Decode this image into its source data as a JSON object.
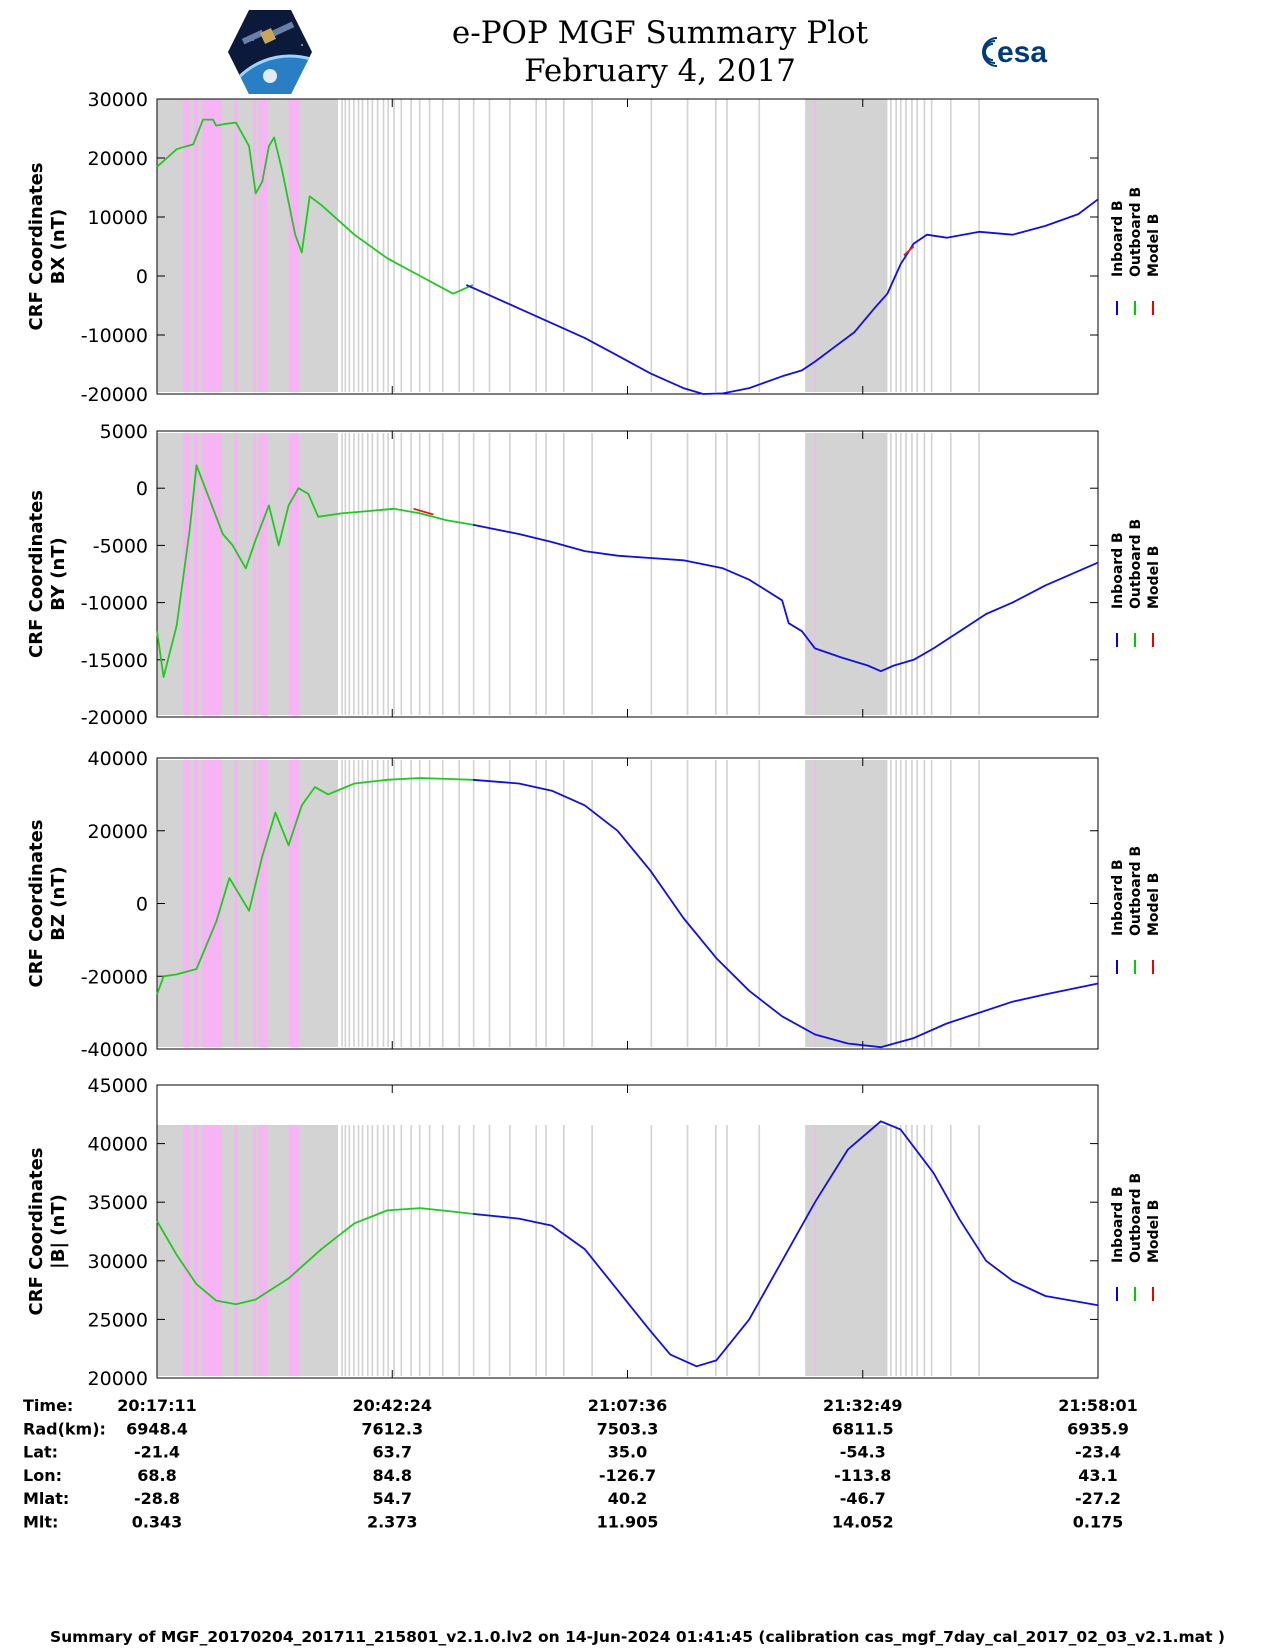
{
  "header": {
    "title": "e-POP MGF Summary Plot",
    "date": "February 4, 2017",
    "esa_logo_text": "esa"
  },
  "legend": {
    "labels": [
      "Inboard B",
      "Outboard B",
      "Model B"
    ],
    "colors": [
      "#0000ee",
      "#00cc00",
      "#ee0000"
    ]
  },
  "colors": {
    "inboard": "#1010e0",
    "outboard": "#22c822",
    "model": "#e02020",
    "gap_gray": "#d3d3d3",
    "gap_pink": "#f7b4f4"
  },
  "chart_data": [
    {
      "type": "line",
      "ylabel": [
        "CRF Coordinates",
        "BX (nT)"
      ],
      "ylim": [
        -20000,
        30000
      ],
      "yticks": [
        -20000,
        -10000,
        0,
        10000,
        20000,
        30000
      ],
      "y_tick_labels": [
        "-20000",
        "-10000",
        "0",
        "10000",
        "20000",
        "30000"
      ],
      "series": [
        {
          "name": "Outboard B",
          "color": "outboard",
          "points": [
            [
              0,
              18500
            ],
            [
              1.5,
              20000
            ],
            [
              3,
              21500
            ],
            [
              4.5,
              22000
            ],
            [
              5.5,
              22300
            ],
            [
              7,
              26500
            ],
            [
              8.5,
              26500
            ],
            [
              9,
              25500
            ],
            [
              10.5,
              25800
            ],
            [
              12,
              26000
            ],
            [
              14,
              22000
            ],
            [
              15,
              14000
            ],
            [
              16,
              16000
            ],
            [
              17,
              22000
            ],
            [
              17.8,
              23500
            ],
            [
              19,
              18000
            ],
            [
              21,
              7000
            ],
            [
              22,
              4000
            ],
            [
              23.2,
              13500
            ],
            [
              25,
              12000
            ],
            [
              30,
              7000
            ],
            [
              35,
              3000
            ],
            [
              40,
              0
            ],
            [
              45,
              -3000
            ],
            [
              48,
              -1500
            ]
          ]
        },
        {
          "name": "Inboard B",
          "color": "inboard",
          "points": [
            [
              47,
              -1500
            ],
            [
              50,
              -3000
            ],
            [
              55,
              -5500
            ],
            [
              60,
              -8000
            ],
            [
              65,
              -10500
            ],
            [
              70,
              -13500
            ],
            [
              75,
              -16500
            ],
            [
              80,
              -19000
            ],
            [
              83,
              -20000
            ],
            [
              86,
              -19900
            ],
            [
              90,
              -19000
            ],
            [
              95,
              -17000
            ],
            [
              98,
              -16000
            ],
            [
              100,
              -14500
            ],
            [
              103,
              -12000
            ],
            [
              106,
              -9500
            ],
            [
              109,
              -5500
            ],
            [
              111,
              -3000
            ],
            [
              113,
              2000
            ],
            [
              115,
              5500
            ],
            [
              117,
              7000
            ],
            [
              120,
              6500
            ],
            [
              125,
              7500
            ],
            [
              130,
              7000
            ],
            [
              135,
              8500
            ],
            [
              140,
              10500
            ],
            [
              143,
              13000
            ]
          ]
        },
        {
          "name": "Model B",
          "color": "model",
          "points": [
            [
              113.5,
              3500
            ],
            [
              115,
              5000
            ]
          ]
        }
      ]
    },
    {
      "type": "line",
      "ylabel": [
        "CRF Coordinates",
        "BY (nT)"
      ],
      "ylim": [
        -20000,
        5000
      ],
      "yticks": [
        -20000,
        -15000,
        -10000,
        -5000,
        0,
        5000
      ],
      "y_tick_labels": [
        "-20000",
        "-15000",
        "-10000",
        "-5000",
        "0",
        "5000"
      ],
      "series": [
        {
          "name": "Outboard B",
          "color": "outboard",
          "points": [
            [
              0,
              -12500
            ],
            [
              1,
              -16500
            ],
            [
              3,
              -12000
            ],
            [
              5,
              -3500
            ],
            [
              6,
              2000
            ],
            [
              8,
              -1000
            ],
            [
              10,
              -4000
            ],
            [
              11.5,
              -5000
            ],
            [
              13.5,
              -7000
            ],
            [
              15,
              -4500
            ],
            [
              17,
              -1500
            ],
            [
              18.5,
              -5000
            ],
            [
              20,
              -1500
            ],
            [
              21.5,
              0
            ],
            [
              23,
              -500
            ],
            [
              24.5,
              -2500
            ],
            [
              28,
              -2200
            ],
            [
              32,
              -2000
            ],
            [
              36,
              -1800
            ],
            [
              40,
              -2200
            ],
            [
              44,
              -2800
            ],
            [
              48,
              -3200
            ]
          ]
        },
        {
          "name": "Inboard B",
          "color": "inboard",
          "points": [
            [
              48,
              -3200
            ],
            [
              55,
              -4000
            ],
            [
              60,
              -4700
            ],
            [
              65,
              -5500
            ],
            [
              70,
              -5900
            ],
            [
              75,
              -6100
            ],
            [
              80,
              -6300
            ],
            [
              86,
              -7000
            ],
            [
              90,
              -8000
            ],
            [
              95,
              -9800
            ],
            [
              96,
              -11800
            ],
            [
              98,
              -12500
            ],
            [
              100,
              -14000
            ],
            [
              104,
              -14800
            ],
            [
              108,
              -15500
            ],
            [
              110,
              -16000
            ],
            [
              112,
              -15500
            ],
            [
              115,
              -15000
            ],
            [
              118,
              -14000
            ],
            [
              122,
              -12500
            ],
            [
              126,
              -11000
            ],
            [
              130,
              -10000
            ],
            [
              135,
              -8500
            ],
            [
              143,
              -6500
            ]
          ]
        },
        {
          "name": "Model B",
          "color": "model",
          "points": [
            [
              39,
              -1800
            ],
            [
              42,
              -2300
            ]
          ]
        }
      ]
    },
    {
      "type": "line",
      "ylabel": [
        "CRF Coordinates",
        "BZ (nT)"
      ],
      "ylim": [
        -40000,
        40000
      ],
      "yticks": [
        -40000,
        -20000,
        0,
        20000,
        40000
      ],
      "y_tick_labels": [
        "-40000",
        "-20000",
        "0",
        "20000",
        "40000"
      ],
      "series": [
        {
          "name": "Outboard B",
          "color": "outboard",
          "points": [
            [
              0,
              -25000
            ],
            [
              1,
              -20000
            ],
            [
              3,
              -19500
            ],
            [
              6,
              -18000
            ],
            [
              9,
              -5000
            ],
            [
              11,
              7000
            ],
            [
              14,
              -2000
            ],
            [
              16,
              13000
            ],
            [
              18,
              25000
            ],
            [
              20,
              16000
            ],
            [
              22,
              27000
            ],
            [
              24,
              32000
            ],
            [
              26,
              30000
            ],
            [
              30,
              33000
            ],
            [
              35,
              34000
            ],
            [
              40,
              34500
            ],
            [
              45,
              34200
            ],
            [
              48,
              34000
            ]
          ]
        },
        {
          "name": "Inboard B",
          "color": "inboard",
          "points": [
            [
              48,
              34000
            ],
            [
              55,
              33000
            ],
            [
              60,
              31000
            ],
            [
              65,
              27000
            ],
            [
              70,
              20000
            ],
            [
              75,
              9000
            ],
            [
              80,
              -4000
            ],
            [
              85,
              -15000
            ],
            [
              90,
              -24000
            ],
            [
              95,
              -31000
            ],
            [
              100,
              -36000
            ],
            [
              105,
              -38500
            ],
            [
              110,
              -39500
            ],
            [
              115,
              -37000
            ],
            [
              120,
              -33000
            ],
            [
              125,
              -30000
            ],
            [
              130,
              -27000
            ],
            [
              135,
              -25000
            ],
            [
              143,
              -22000
            ]
          ]
        }
      ]
    },
    {
      "type": "line",
      "ylabel": [
        "CRF Coordinates",
        "|B| (nT)"
      ],
      "ylim": [
        20000,
        45000
      ],
      "yticks": [
        20000,
        25000,
        30000,
        35000,
        40000,
        45000
      ],
      "y_tick_labels": [
        "20000",
        "25000",
        "30000",
        "35000",
        "40000",
        "45000"
      ],
      "series": [
        {
          "name": "Outboard B",
          "color": "outboard",
          "points": [
            [
              0,
              33400
            ],
            [
              3,
              30500
            ],
            [
              6,
              28000
            ],
            [
              9,
              26600
            ],
            [
              12,
              26300
            ],
            [
              15,
              26700
            ],
            [
              20,
              28500
            ],
            [
              25,
              31000
            ],
            [
              30,
              33200
            ],
            [
              35,
              34300
            ],
            [
              40,
              34500
            ],
            [
              45,
              34200
            ],
            [
              48,
              34000
            ]
          ]
        },
        {
          "name": "Inboard B",
          "color": "inboard",
          "points": [
            [
              48,
              34000
            ],
            [
              55,
              33600
            ],
            [
              60,
              33000
            ],
            [
              65,
              31000
            ],
            [
              70,
              27500
            ],
            [
              75,
              24000
            ],
            [
              78,
              22000
            ],
            [
              82,
              21000
            ],
            [
              85,
              21500
            ],
            [
              90,
              25000
            ],
            [
              95,
              30000
            ],
            [
              100,
              35000
            ],
            [
              105,
              39500
            ],
            [
              110,
              41900
            ],
            [
              113,
              41200
            ],
            [
              118,
              37500
            ],
            [
              122,
              33500
            ],
            [
              126,
              30000
            ],
            [
              130,
              28300
            ],
            [
              135,
              27000
            ],
            [
              143,
              26200
            ]
          ]
        }
      ]
    }
  ],
  "x_axis": {
    "range": [
      0,
      143
    ],
    "major_positions": [
      0,
      35.75,
      71.5,
      107.25,
      143
    ],
    "gray_bands": [
      [
        0,
        27.5
      ],
      [
        28,
        28.25
      ],
      [
        28.5,
        28.75
      ],
      [
        29.1,
        29.35
      ],
      [
        29.8,
        30.05
      ],
      [
        30.5,
        30.75
      ],
      [
        31.1,
        31.35
      ],
      [
        31.9,
        32.15
      ],
      [
        32.6,
        32.85
      ],
      [
        33.4,
        33.65
      ],
      [
        34.3,
        34.55
      ],
      [
        35,
        35.25
      ],
      [
        35.9,
        36.15
      ],
      [
        37,
        37.25
      ],
      [
        38.5,
        38.75
      ],
      [
        39.8,
        40.05
      ],
      [
        41.3,
        41.55
      ],
      [
        43.3,
        43.55
      ],
      [
        45.8,
        46.05
      ],
      [
        48,
        48.25
      ],
      [
        50.4,
        50.65
      ],
      [
        53.5,
        53.75
      ],
      [
        57.5,
        57.75
      ],
      [
        59,
        59.25
      ],
      [
        61.7,
        61.95
      ],
      [
        66,
        66.25
      ],
      [
        75,
        75.25
      ],
      [
        80.5,
        80.75
      ],
      [
        84.8,
        85.05
      ],
      [
        86.5,
        86.75
      ],
      [
        91.4,
        91.65
      ],
      [
        98.5,
        111
      ],
      [
        111.4,
        111.65
      ],
      [
        112.2,
        112.45
      ],
      [
        112.9,
        113.15
      ],
      [
        113.7,
        113.95
      ],
      [
        114.6,
        114.85
      ],
      [
        115.4,
        115.65
      ],
      [
        116.5,
        116.75
      ],
      [
        117.6,
        117.85
      ],
      [
        120.5,
        120.75
      ],
      [
        124.8,
        125.05
      ]
    ],
    "pink_bands": [
      [
        4,
        5
      ],
      [
        5.6,
        6.3
      ],
      [
        6.9,
        9.8
      ],
      [
        11.8,
        12.3
      ],
      [
        14.6,
        15.1
      ],
      [
        15.5,
        16.8
      ],
      [
        20,
        21.6
      ],
      [
        99.9,
        100.15
      ]
    ]
  },
  "table": {
    "rows": [
      {
        "label": "Time:",
        "values": [
          "20:17:11",
          "20:42:24",
          "21:07:36",
          "21:32:49",
          "21:58:01"
        ]
      },
      {
        "label": "Rad(km):",
        "values": [
          "6948.4",
          "7612.3",
          "7503.3",
          "6811.5",
          "6935.9"
        ]
      },
      {
        "label": "Lat:",
        "values": [
          "-21.4",
          "63.7",
          "35.0",
          "-54.3",
          "-23.4"
        ]
      },
      {
        "label": "Lon:",
        "values": [
          "68.8",
          "84.8",
          "-126.7",
          "-113.8",
          "43.1"
        ]
      },
      {
        "label": "Mlat:",
        "values": [
          "-28.8",
          "54.7",
          "40.2",
          "-46.7",
          "-27.2"
        ]
      },
      {
        "label": "Mlt:",
        "values": [
          "0.343",
          "2.373",
          "11.905",
          "14.052",
          "0.175"
        ]
      }
    ]
  },
  "footer": {
    "text": "Summary of MGF_20170204_201711_215801_v2.1.0.lv2 on 14-Jun-2024 01:41:45 (calibration cas_mgf_7day_cal_2017_02_03_v2.1.mat )"
  }
}
